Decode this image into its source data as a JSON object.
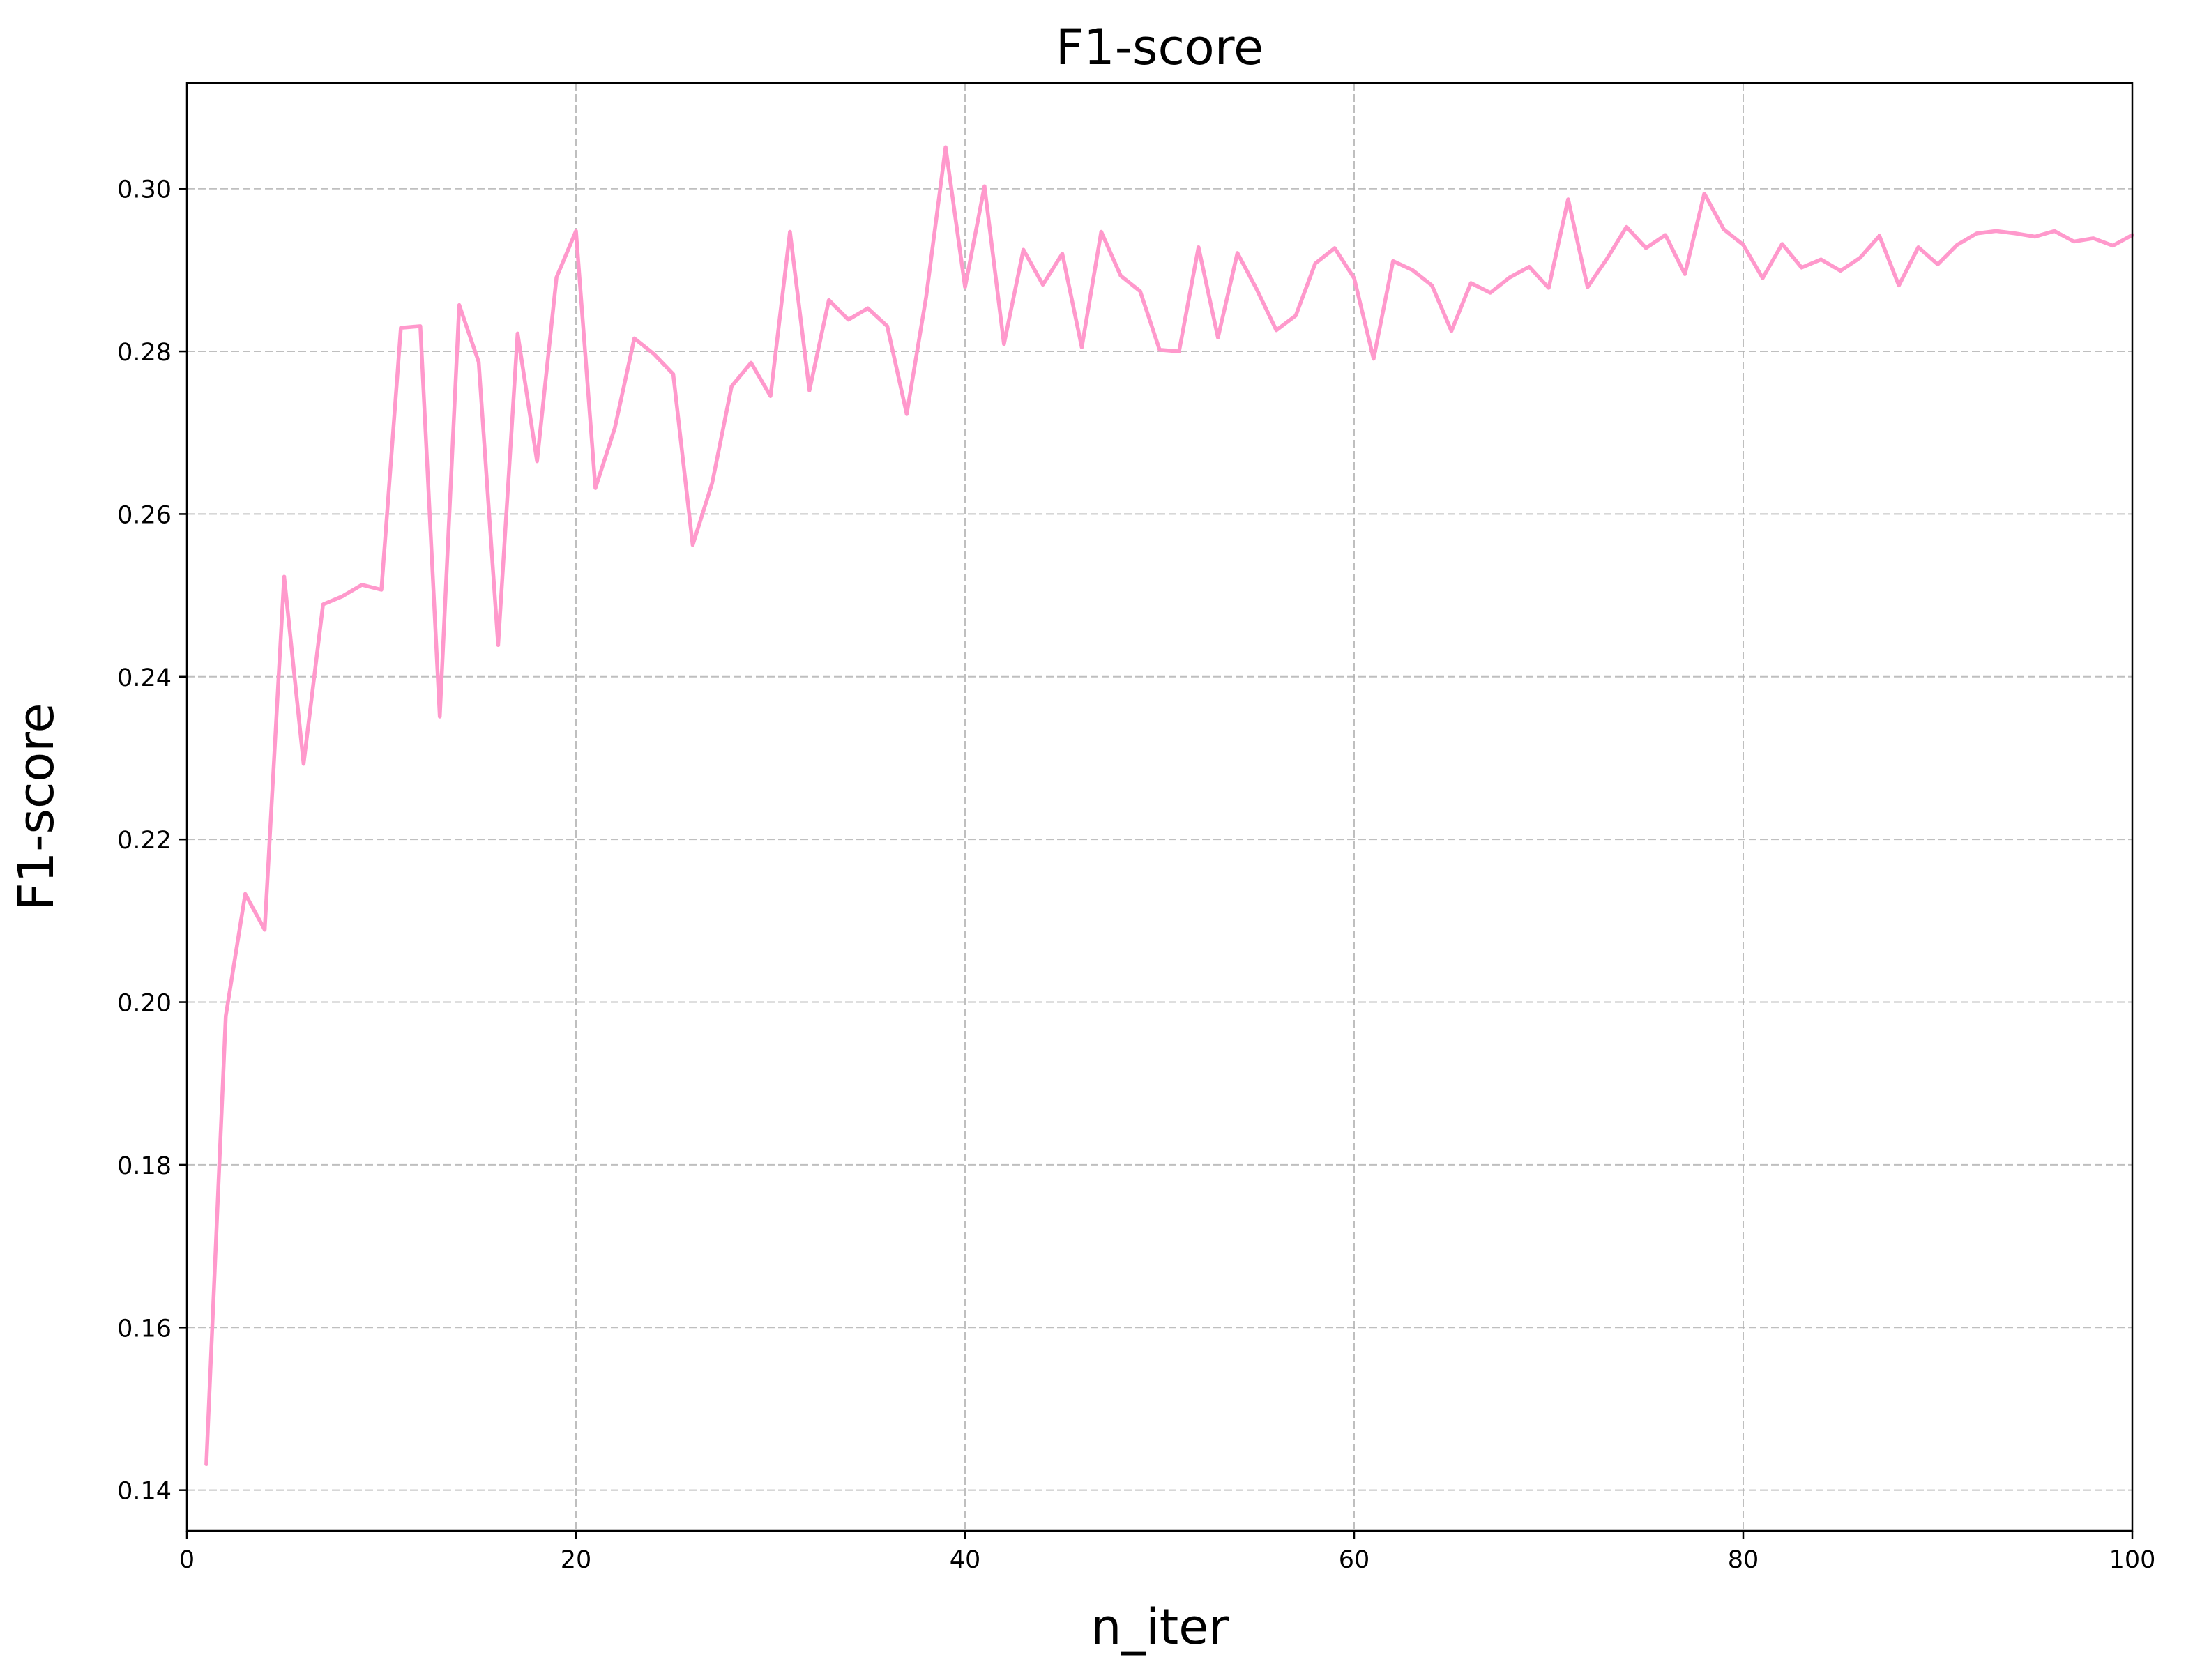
{
  "chart_data": {
    "type": "line",
    "title": "F1-score",
    "xlabel": "n_iter",
    "ylabel": "F1-score",
    "xlim": [
      0,
      100
    ],
    "ylim": [
      0.135,
      0.313
    ],
    "xticks": [
      0,
      20,
      40,
      60,
      80,
      100
    ],
    "xtick_labels": [
      "0",
      "20",
      "40",
      "60",
      "80",
      "100"
    ],
    "yticks": [
      0.14,
      0.16,
      0.18,
      0.2,
      0.22,
      0.24,
      0.26,
      0.28,
      0.3
    ],
    "ytick_labels": [
      "0.14",
      "0.16",
      "0.18",
      "0.20",
      "0.22",
      "0.24",
      "0.26",
      "0.28",
      "0.30"
    ],
    "grid": true,
    "series": [
      {
        "color": "#ff99cc",
        "x": [
          1,
          2,
          3,
          4,
          5,
          6,
          7,
          8,
          9,
          10,
          11,
          12,
          13,
          14,
          15,
          16,
          17,
          18,
          19,
          20,
          21,
          22,
          23,
          24,
          25,
          26,
          27,
          28,
          29,
          30,
          31,
          32,
          33,
          34,
          35,
          36,
          37,
          38,
          39,
          40,
          41,
          42,
          43,
          44,
          45,
          46,
          47,
          48,
          49,
          50,
          51,
          52,
          53,
          54,
          55,
          56,
          57,
          58,
          59,
          60,
          61,
          62,
          63,
          64,
          65,
          66,
          67,
          68,
          69,
          70,
          71,
          72,
          73,
          74,
          75,
          76,
          77,
          78,
          79,
          80,
          81,
          82,
          83,
          84,
          85,
          86,
          87,
          88,
          89,
          90,
          91,
          92,
          93,
          94,
          95,
          96,
          97,
          98,
          99,
          100
        ],
        "y": [
          0.1432,
          0.1983,
          0.2133,
          0.2089,
          0.2523,
          0.2293,
          0.2489,
          0.2499,
          0.2513,
          0.2507,
          0.2829,
          0.2831,
          0.2351,
          0.2857,
          0.2787,
          0.2439,
          0.2822,
          0.2665,
          0.2891,
          0.2948,
          0.2632,
          0.2706,
          0.2816,
          0.2797,
          0.2772,
          0.2562,
          0.2638,
          0.2757,
          0.2786,
          0.2745,
          0.2947,
          0.2752,
          0.2863,
          0.2839,
          0.2853,
          0.2831,
          0.2723,
          0.2867,
          0.3051,
          0.2879,
          0.3003,
          0.2809,
          0.2925,
          0.2882,
          0.292,
          0.2805,
          0.2947,
          0.2893,
          0.2874,
          0.2802,
          0.28,
          0.2928,
          0.2817,
          0.2921,
          0.2876,
          0.2826,
          0.2844,
          0.2908,
          0.2927,
          0.289,
          0.2791,
          0.2911,
          0.29,
          0.2881,
          0.2825,
          0.2884,
          0.2872,
          0.2891,
          0.2904,
          0.2878,
          0.2987,
          0.2879,
          0.2914,
          0.2953,
          0.2927,
          0.2943,
          0.2895,
          0.2994,
          0.295,
          0.2931,
          0.289,
          0.2932,
          0.2903,
          0.2913,
          0.2899,
          0.2915,
          0.2942,
          0.2881,
          0.2928,
          0.2907,
          0.2931,
          0.2945,
          0.2948,
          0.2945,
          0.2941,
          0.2948,
          0.2935,
          0.2939,
          0.293,
          0.2943
        ]
      }
    ]
  }
}
